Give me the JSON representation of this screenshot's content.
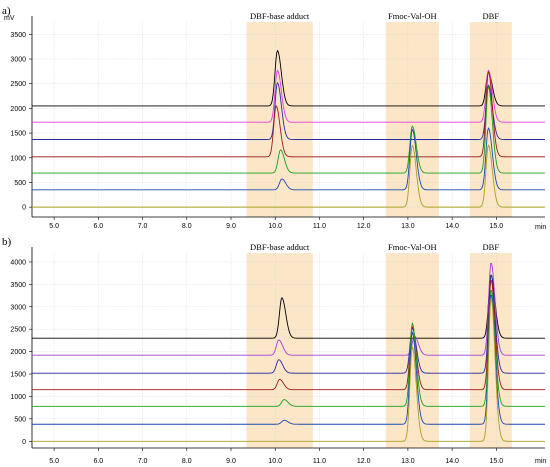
{
  "chart_data": [
    {
      "panel_label": "a)",
      "type": "line",
      "y_unit": "mV",
      "x_unit": "min",
      "xlim": [
        4.5,
        16.1
      ],
      "ylim": [
        -200,
        3750
      ],
      "x_ticks": [
        5.0,
        6.0,
        7.0,
        8.0,
        9.0,
        10.0,
        11.0,
        12.0,
        13.0,
        14.0,
        15.0
      ],
      "y_ticks": [
        0,
        500,
        1000,
        1500,
        2000,
        2500,
        3000,
        3500
      ],
      "grid": true,
      "regions": [
        {
          "label": "DBF-base adduct",
          "x_range": [
            9.35,
            10.85
          ]
        },
        {
          "label": "Fmoc-Val-OH",
          "x_range": [
            12.5,
            13.7
          ]
        },
        {
          "label": "DBF",
          "x_range": [
            14.4,
            15.35
          ]
        }
      ],
      "series": [
        {
          "color": "#000000",
          "baseline": 2050,
          "peaks": [
            {
              "x": 10.05,
              "height": 1120
            },
            {
              "x": 14.82,
              "height": 680
            }
          ]
        },
        {
          "color": "#e040e0",
          "baseline": 1720,
          "peaks": [
            {
              "x": 10.05,
              "height": 1050
            },
            {
              "x": 14.82,
              "height": 1050
            }
          ]
        },
        {
          "color": "#2a2aa0",
          "baseline": 1370,
          "peaks": [
            {
              "x": 10.05,
              "height": 1150
            },
            {
              "x": 14.82,
              "height": 1100
            }
          ]
        },
        {
          "color": "#a01818",
          "baseline": 1020,
          "peaks": [
            {
              "x": 10.02,
              "height": 1030
            },
            {
              "x": 14.82,
              "height": 1720
            }
          ]
        },
        {
          "color": "#18a018",
          "baseline": 690,
          "peaks": [
            {
              "x": 10.12,
              "height": 470
            },
            {
              "x": 13.1,
              "height": 950
            },
            {
              "x": 14.82,
              "height": 1750
            }
          ]
        },
        {
          "color": "#1848b0",
          "baseline": 350,
          "peaks": [
            {
              "x": 10.15,
              "height": 220
            },
            {
              "x": 13.1,
              "height": 1220
            },
            {
              "x": 14.82,
              "height": 1250
            }
          ]
        },
        {
          "color": "#a8a020",
          "baseline": 0,
          "peaks": [
            {
              "x": 13.1,
              "height": 1250
            },
            {
              "x": 14.82,
              "height": 1250
            }
          ]
        }
      ]
    },
    {
      "panel_label": "b)",
      "type": "line",
      "y_unit": "mV",
      "x_unit": "min",
      "xlim": [
        4.5,
        16.1
      ],
      "ylim": [
        -150,
        4200
      ],
      "x_ticks": [
        5.0,
        6.0,
        7.0,
        8.0,
        9.0,
        10.0,
        11.0,
        12.0,
        13.0,
        14.0,
        15.0
      ],
      "y_ticks": [
        0,
        500,
        1000,
        1500,
        2000,
        2500,
        3000,
        3500,
        4000
      ],
      "grid": true,
      "regions": [
        {
          "label": "DBF-base adduct",
          "x_range": [
            9.35,
            10.85
          ]
        },
        {
          "label": "Fmoc-Val-OH",
          "x_range": [
            12.5,
            13.7
          ]
        },
        {
          "label": "DBF",
          "x_range": [
            14.4,
            15.35
          ]
        }
      ],
      "series": [
        {
          "color": "#000000",
          "baseline": 2300,
          "peaks": [
            {
              "x": 10.15,
              "height": 900
            },
            {
              "x": 14.88,
              "height": 1400
            }
          ]
        },
        {
          "color": "#a040e0",
          "baseline": 1920,
          "peaks": [
            {
              "x": 10.08,
              "height": 340
            },
            {
              "x": 13.15,
              "height": 420
            },
            {
              "x": 14.88,
              "height": 2060
            }
          ]
        },
        {
          "color": "#2a2aa0",
          "baseline": 1520,
          "peaks": [
            {
              "x": 10.08,
              "height": 300
            },
            {
              "x": 13.1,
              "height": 1000
            },
            {
              "x": 14.88,
              "height": 2200
            }
          ]
        },
        {
          "color": "#a01818",
          "baseline": 1150,
          "peaks": [
            {
              "x": 10.1,
              "height": 230
            },
            {
              "x": 13.1,
              "height": 1400
            },
            {
              "x": 14.88,
              "height": 2450
            }
          ]
        },
        {
          "color": "#18a018",
          "baseline": 780,
          "peaks": [
            {
              "x": 10.2,
              "height": 150
            },
            {
              "x": 13.1,
              "height": 1850
            },
            {
              "x": 14.88,
              "height": 2600
            }
          ]
        },
        {
          "color": "#1848b0",
          "baseline": 380,
          "peaks": [
            {
              "x": 10.2,
              "height": 90
            },
            {
              "x": 13.1,
              "height": 2050
            },
            {
              "x": 14.88,
              "height": 2900
            }
          ]
        },
        {
          "color": "#a8a020",
          "baseline": 0,
          "peaks": [
            {
              "x": 13.1,
              "height": 2100
            },
            {
              "x": 14.88,
              "height": 3200
            }
          ]
        }
      ]
    }
  ]
}
